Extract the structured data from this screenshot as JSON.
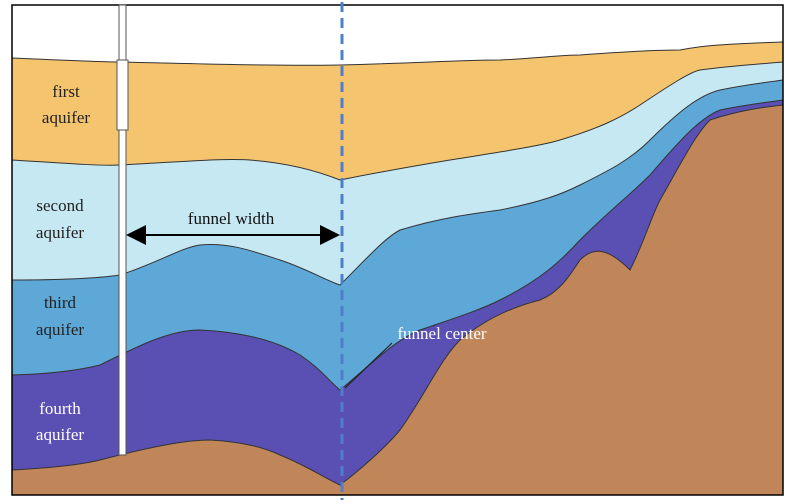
{
  "layers": [
    {
      "lines": [
        "first",
        "aquifer"
      ]
    },
    {
      "lines": [
        "second",
        "aquifer"
      ]
    },
    {
      "lines": [
        "third",
        "aquifer"
      ]
    },
    {
      "lines": [
        "fourth",
        "aquifer"
      ]
    }
  ],
  "annotations": {
    "width": "funnel width",
    "center": "funnel center"
  }
}
